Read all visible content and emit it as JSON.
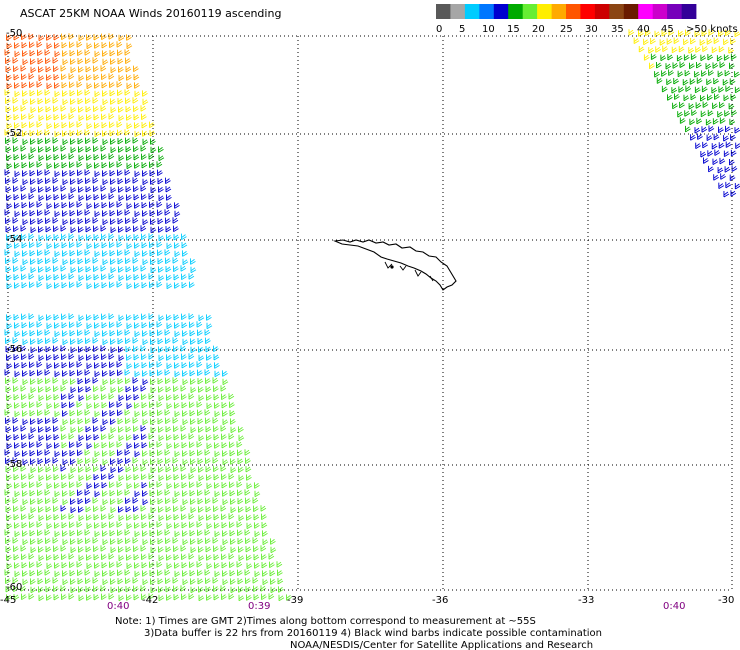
{
  "title": "ASCAT 25KM NOAA Winds 20160119 ascending",
  "colorbar": {
    "segments": [
      {
        "color": "#595959"
      },
      {
        "color": "#a6a6a6"
      },
      {
        "color": "#00ccff"
      },
      {
        "color": "#0077ff"
      },
      {
        "color": "#0000d0"
      },
      {
        "color": "#00aa00"
      },
      {
        "color": "#66ee33"
      },
      {
        "color": "#ffee00"
      },
      {
        "color": "#ffaa00"
      },
      {
        "color": "#ff5500"
      },
      {
        "color": "#ff0000"
      },
      {
        "color": "#cc0000"
      },
      {
        "color": "#8b4513"
      },
      {
        "color": "#6a1b00"
      },
      {
        "color": "#ff00ff"
      },
      {
        "color": "#cc00cc"
      },
      {
        "color": "#7700bb"
      },
      {
        "color": "#330099"
      }
    ],
    "ticks": [
      "0",
      "5",
      "10",
      "15",
      "20",
      "25",
      "30",
      "35",
      "40",
      "45",
      ">50 knots"
    ]
  },
  "axes": {
    "lat_labels": [
      "-50",
      "-52",
      "-54",
      "-56",
      "-58",
      "-60"
    ],
    "lon_labels": [
      "-45",
      "-42",
      "-39",
      "-36",
      "-33",
      "-30"
    ],
    "pass_times": [
      "0:40",
      "0:39",
      "0:40"
    ]
  },
  "notes": [
    "Note: 1) Times are GMT 2)Times along bottom correspond to measurement at ~55S",
    "3)Data buffer is 22 hrs from 20160119 4) Black wind barbs indicate possible contamination",
    "NOAA/NESDIS/Center for Satellite Applications and Research"
  ],
  "map": {
    "lat_range": [
      -60,
      -50
    ],
    "lon_range": [
      -45,
      -30
    ],
    "land": "South Georgia Island",
    "grid": "dotted",
    "wind_speed_colors": {
      "0-5": "#595959",
      "5-10": "#00ccff",
      "10-15": "#0000d0",
      "15-20": "#00aa00",
      "20-25": "#66ee33",
      "25-30": "#ffee00",
      "30-35": "#ffaa00",
      "35-40": "#ff5500"
    }
  }
}
